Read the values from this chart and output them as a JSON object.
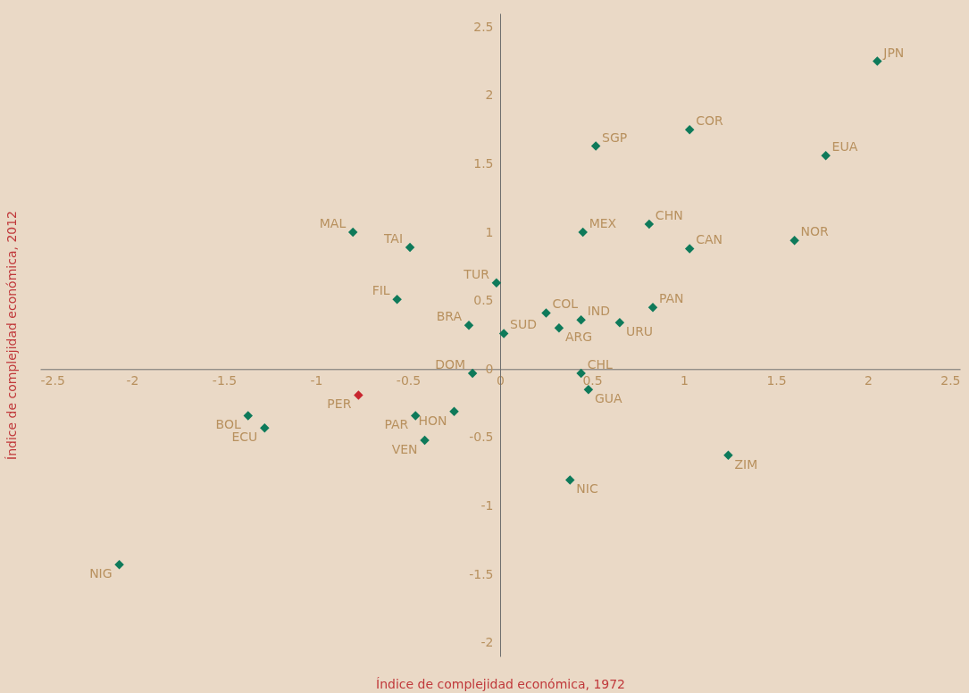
{
  "chart_data": {
    "type": "scatter",
    "xlabel": "Índice de complejidad económica, 1972",
    "ylabel": "Índice de complejidad económica, 2012",
    "xlim": [
      -2.5,
      2.5
    ],
    "ylim": [
      -2.1,
      2.6
    ],
    "xticks": [
      -2.5,
      -2,
      -1.5,
      -1,
      -0.5,
      0,
      0.5,
      1,
      1.5,
      2,
      2.5
    ],
    "yticks": [
      -2,
      -1.5,
      -1,
      -0.5,
      0,
      0.5,
      1,
      1.5,
      2,
      2.5
    ],
    "grid": false,
    "marker": "diamond",
    "series": [
      {
        "color": "#0e7a5a",
        "x": [
          2.05,
          1.03,
          1.77,
          0.52,
          0.81,
          0.45,
          1.03,
          1.6,
          -0.8,
          -0.49,
          -0.02,
          -0.56,
          0.25,
          0.44,
          0.83,
          0.65,
          0.32,
          -0.17,
          0.02,
          -0.15,
          0.44,
          0.48,
          -0.25,
          -0.46,
          -1.37,
          -1.28,
          -0.41,
          1.24,
          0.38,
          -2.07
        ],
        "values": [
          2.25,
          1.75,
          1.56,
          1.63,
          1.06,
          1.0,
          0.88,
          0.94,
          1.0,
          0.89,
          0.63,
          0.51,
          0.41,
          0.36,
          0.45,
          0.34,
          0.3,
          0.32,
          0.26,
          -0.03,
          -0.03,
          -0.15,
          -0.31,
          -0.34,
          -0.34,
          -0.43,
          -0.52,
          -0.63,
          -0.81,
          -1.43
        ]
      },
      {
        "color": "#c8262f",
        "x": [
          -0.77
        ],
        "values": [
          -0.19
        ]
      }
    ],
    "annotations": [
      {
        "text": "JPN",
        "x": 2.05,
        "y": 2.25
      },
      {
        "text": "COR",
        "x": 1.03,
        "y": 1.75
      },
      {
        "text": "EUA",
        "x": 1.77,
        "y": 1.56
      },
      {
        "text": "SGP",
        "x": 0.52,
        "y": 1.63
      },
      {
        "text": "CHN",
        "x": 0.81,
        "y": 1.06
      },
      {
        "text": "MEX",
        "x": 0.45,
        "y": 1.0
      },
      {
        "text": "CAN",
        "x": 1.03,
        "y": 0.88
      },
      {
        "text": "NOR",
        "x": 1.6,
        "y": 0.94
      },
      {
        "text": "MAL",
        "x": -0.8,
        "y": 1.0
      },
      {
        "text": "TAI",
        "x": -0.49,
        "y": 0.89
      },
      {
        "text": "TUR",
        "x": -0.02,
        "y": 0.63
      },
      {
        "text": "FIL",
        "x": -0.56,
        "y": 0.51
      },
      {
        "text": "COL",
        "x": 0.25,
        "y": 0.41
      },
      {
        "text": "IND",
        "x": 0.44,
        "y": 0.36
      },
      {
        "text": "PAN",
        "x": 0.83,
        "y": 0.45
      },
      {
        "text": "URU",
        "x": 0.65,
        "y": 0.34
      },
      {
        "text": "ARG",
        "x": 0.32,
        "y": 0.3
      },
      {
        "text": "BRA",
        "x": -0.17,
        "y": 0.32
      },
      {
        "text": "SUD",
        "x": 0.02,
        "y": 0.26
      },
      {
        "text": "DOM",
        "x": -0.15,
        "y": -0.03
      },
      {
        "text": "CHL",
        "x": 0.44,
        "y": -0.03
      },
      {
        "text": "GUA",
        "x": 0.48,
        "y": -0.15
      },
      {
        "text": "HON",
        "x": -0.25,
        "y": -0.31
      },
      {
        "text": "PAR",
        "x": -0.46,
        "y": -0.34
      },
      {
        "text": "BOL",
        "x": -1.37,
        "y": -0.34
      },
      {
        "text": "ECU",
        "x": -1.28,
        "y": -0.43
      },
      {
        "text": "VEN",
        "x": -0.41,
        "y": -0.52
      },
      {
        "text": "ZIM",
        "x": 1.24,
        "y": -0.63
      },
      {
        "text": "NIC",
        "x": 0.38,
        "y": -0.81
      },
      {
        "text": "NIG",
        "x": -2.07,
        "y": -1.43
      },
      {
        "text": "PER",
        "x": -0.77,
        "y": -0.19
      }
    ]
  }
}
